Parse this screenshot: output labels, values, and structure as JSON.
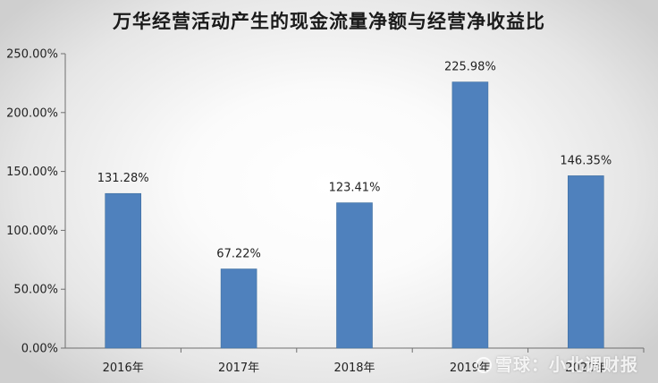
{
  "chart_data": {
    "type": "bar",
    "title": "万华经营活动产生的现金流量净额与经营净收益比",
    "xlabel": "",
    "ylabel": "",
    "categories": [
      "2016年",
      "2017年",
      "2018年",
      "2019年",
      "2020年"
    ],
    "values": [
      131.28,
      67.22,
      123.41,
      225.98,
      146.35
    ],
    "data_labels": [
      "131.28%",
      "67.22%",
      "123.41%",
      "225.98%",
      "146.35%"
    ],
    "y_ticks": [
      "0.00%",
      "50.00%",
      "100.00%",
      "150.00%",
      "200.00%",
      "250.00%"
    ],
    "ylim": [
      0,
      250
    ],
    "grid": false,
    "legend": "none",
    "bar_color": "#4f81bd"
  },
  "watermark": "雪球：小北调财报"
}
